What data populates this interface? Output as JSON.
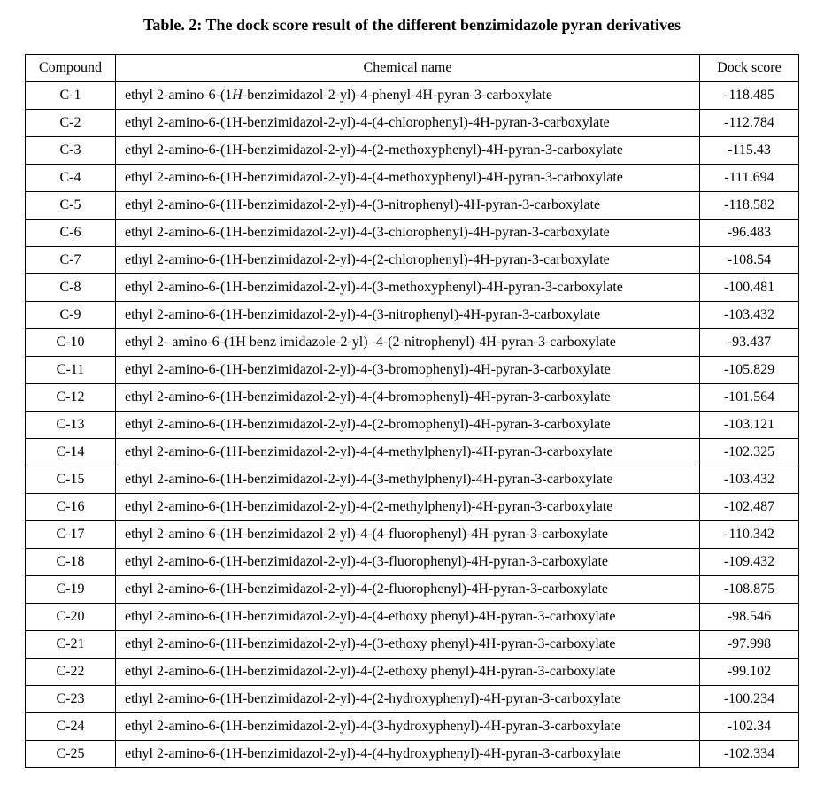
{
  "title": "Table. 2: The dock score result of the different benzimidazole pyran derivatives",
  "columns": [
    "Compound",
    "Chemical name",
    "Dock score"
  ],
  "rows": [
    {
      "compound": "C-1",
      "name_html": "ethyl 2-amino-6-(1<span class=\"h1-italic\">H</span>-benzimidazol-2-yl)-4-phenyl-4H-pyran-3-carboxylate",
      "score": "-118.485"
    },
    {
      "compound": "C-2",
      "name_html": "ethyl 2-amino-6-(1H-benzimidazol-2-yl)-4-(4-chlorophenyl)-4H-pyran-3-carboxylate",
      "score": "-112.784"
    },
    {
      "compound": "C-3",
      "name_html": "ethyl 2-amino-6-(1H-benzimidazol-2-yl)-4-(2-methoxyphenyl)-4H-pyran-3-carboxylate",
      "score": "-115.43"
    },
    {
      "compound": "C-4",
      "name_html": "ethyl 2-amino-6-(1H-benzimidazol-2-yl)-4-(4-methoxyphenyl)-4H-pyran-3-carboxylate",
      "score": "-111.694"
    },
    {
      "compound": "C-5",
      "name_html": "ethyl 2-amino-6-(1H-benzimidazol-2-yl)-4-(3-nitrophenyl)-4H-pyran-3-carboxylate",
      "score": "-118.582"
    },
    {
      "compound": "C-6",
      "name_html": "ethyl 2-amino-6-(1H-benzimidazol-2-yl)-4-(3-chlorophenyl)-4H-pyran-3-carboxylate",
      "score": "-96.483"
    },
    {
      "compound": "C-7",
      "name_html": "ethyl 2-amino-6-(1H-benzimidazol-2-yl)-4-(2-chlorophenyl)-4H-pyran-3-carboxylate",
      "score": "-108.54"
    },
    {
      "compound": "C-8",
      "name_html": "ethyl 2-amino-6-(1H-benzimidazol-2-yl)-4-(3-methoxyphenyl)-4H-pyran-3-carboxylate",
      "score": "-100.481"
    },
    {
      "compound": "C-9",
      "name_html": "ethyl 2-amino-6-(1H-benzimidazol-2-yl)-4-(3-nitrophenyl)-4H-pyran-3-carboxylate",
      "score": "-103.432"
    },
    {
      "compound": "C-10",
      "name_html": "ethyl 2- amino-6-(1H benz imidazole-2-yl) -4-(2-nitrophenyl)-4H-pyran-3-carboxylate",
      "score": "-93.437"
    },
    {
      "compound": "C-11",
      "name_html": "ethyl 2-amino-6-(1H-benzimidazol-2-yl)-4-(3-bromophenyl)-4H-pyran-3-carboxylate",
      "score": "-105.829"
    },
    {
      "compound": "C-12",
      "name_html": "ethyl 2-amino-6-(1H-benzimidazol-2-yl)-4-(4-bromophenyl)-4H-pyran-3-carboxylate",
      "score": "-101.564"
    },
    {
      "compound": "C-13",
      "name_html": "ethyl 2-amino-6-(1H-benzimidazol-2-yl)-4-(2-bromophenyl)-4H-pyran-3-carboxylate",
      "score": "-103.121"
    },
    {
      "compound": "C-14",
      "name_html": "ethyl 2-amino-6-(1H-benzimidazol-2-yl)-4-(4-methylphenyl)-4H-pyran-3-carboxylate",
      "score": "-102.325"
    },
    {
      "compound": "C-15",
      "name_html": "ethyl 2-amino-6-(1H-benzimidazol-2-yl)-4-(3-methylphenyl)-4H-pyran-3-carboxylate",
      "score": "-103.432"
    },
    {
      "compound": "C-16",
      "name_html": "ethyl 2-amino-6-(1H-benzimidazol-2-yl)-4-(2-methylphenyl)-4H-pyran-3-carboxylate",
      "score": "-102.487"
    },
    {
      "compound": "C-17",
      "name_html": "ethyl 2-amino-6-(1H-benzimidazol-2-yl)-4-(4-fluorophenyl)-4H-pyran-3-carboxylate",
      "score": "-110.342"
    },
    {
      "compound": "C-18",
      "name_html": "ethyl 2-amino-6-(1H-benzimidazol-2-yl)-4-(3-fluorophenyl)-4H-pyran-3-carboxylate",
      "score": "-109.432"
    },
    {
      "compound": "C-19",
      "name_html": "ethyl 2-amino-6-(1H-benzimidazol-2-yl)-4-(2-fluorophenyl)-4H-pyran-3-carboxylate",
      "score": "-108.875"
    },
    {
      "compound": "C-20",
      "name_html": "ethyl 2-amino-6-(1H-benzimidazol-2-yl)-4-(4-ethoxy phenyl)-4H-pyran-3-carboxylate",
      "score": "-98.546"
    },
    {
      "compound": "C-21",
      "name_html": "ethyl 2-amino-6-(1H-benzimidazol-2-yl)-4-(3-ethoxy phenyl)-4H-pyran-3-carboxylate",
      "score": "-97.998"
    },
    {
      "compound": "C-22",
      "name_html": "ethyl 2-amino-6-(1H-benzimidazol-2-yl)-4-(2-ethoxy phenyl)-4H-pyran-3-carboxylate",
      "score": "-99.102"
    },
    {
      "compound": "C-23",
      "name_html": "ethyl 2-amino-6-(1H-benzimidazol-2-yl)-4-(2-hydroxyphenyl)-4H-pyran-3-carboxylate",
      "score": "-100.234"
    },
    {
      "compound": "C-24",
      "name_html": "ethyl 2-amino-6-(1H-benzimidazol-2-yl)-4-(3-hydroxyphenyl)-4H-pyran-3-carboxylate",
      "score": "-102.34"
    },
    {
      "compound": "C-25",
      "name_html": "ethyl 2-amino-6-(1H-benzimidazol-2-yl)-4-(4-hydroxyphenyl)-4H-pyran-3-carboxylate",
      "score": "-102.334"
    }
  ]
}
